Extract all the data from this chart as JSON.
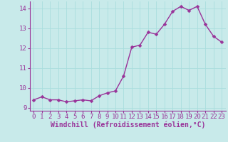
{
  "x": [
    0,
    1,
    2,
    3,
    4,
    5,
    6,
    7,
    8,
    9,
    10,
    11,
    12,
    13,
    14,
    15,
    16,
    17,
    18,
    19,
    20,
    21,
    22,
    23
  ],
  "y": [
    9.4,
    9.55,
    9.4,
    9.4,
    9.3,
    9.35,
    9.4,
    9.35,
    9.6,
    9.75,
    9.85,
    10.6,
    12.05,
    12.15,
    12.8,
    12.7,
    13.2,
    13.85,
    14.1,
    13.9,
    14.1,
    13.2,
    12.6,
    12.3
  ],
  "line_color": "#993399",
  "marker_color": "#993399",
  "bg_color": "#c8eaea",
  "grid_color": "#aadddd",
  "xlabel": "Windchill (Refroidissement éolien,°C)",
  "xlabel_color": "#993399",
  "tick_color": "#993399",
  "spine_color": "#993399",
  "ylim": [
    8.85,
    14.35
  ],
  "xlim": [
    -0.5,
    23.5
  ],
  "yticks": [
    9,
    10,
    11,
    12,
    13,
    14
  ],
  "xticks": [
    0,
    1,
    2,
    3,
    4,
    5,
    6,
    7,
    8,
    9,
    10,
    11,
    12,
    13,
    14,
    15,
    16,
    17,
    18,
    19,
    20,
    21,
    22,
    23
  ],
  "linewidth": 1.0,
  "markersize": 2.5,
  "font_size": 6.5,
  "xlabel_fontsize": 7.0
}
